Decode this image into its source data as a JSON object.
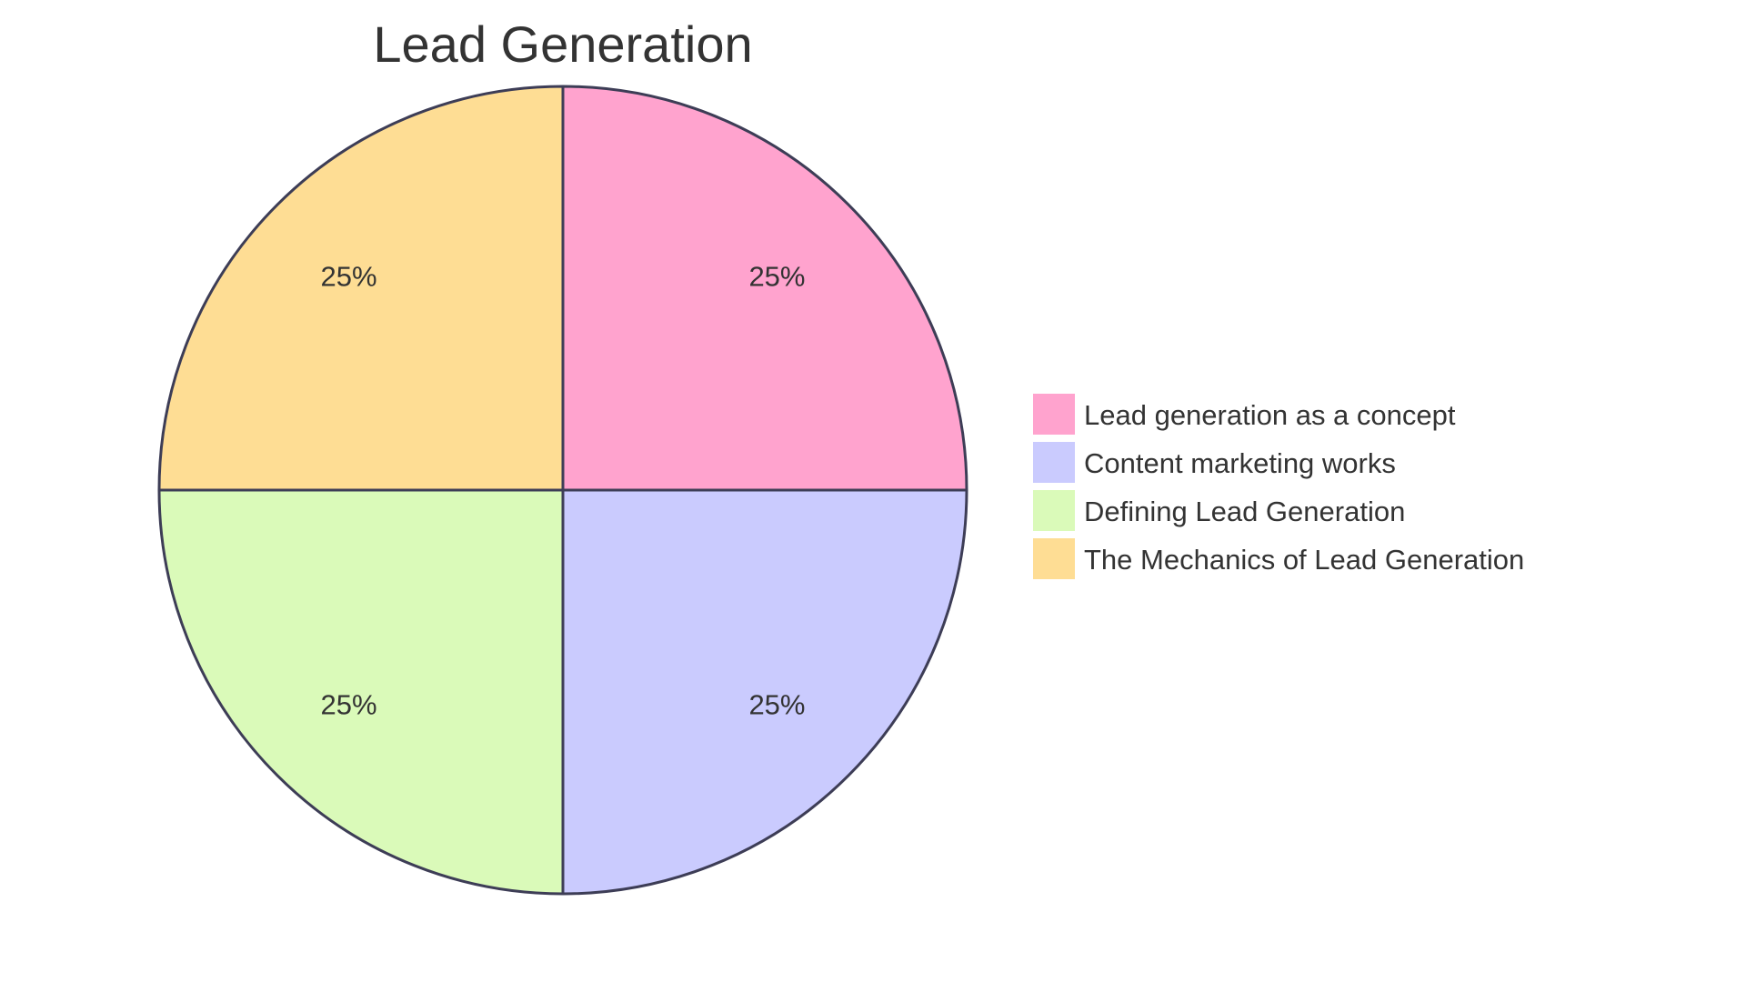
{
  "chart_data": {
    "type": "pie",
    "title": "Lead Generation",
    "categories": [
      "Lead generation as a concept",
      "Content marketing works",
      "Defining Lead Generation",
      "The Mechanics of Lead Generation"
    ],
    "values": [
      25,
      25,
      25,
      25
    ],
    "unit": "%",
    "labels": [
      "25%",
      "25%",
      "25%",
      "25%"
    ],
    "colors": [
      "#FFA3CE",
      "#CACBFE",
      "#DAFAB9",
      "#FEDD94"
    ],
    "legend_position": "right",
    "start_angle": "12 o'clock",
    "direction": "clockwise"
  },
  "title": "Lead Generation",
  "stroke_color": "#3D3D56",
  "legend": {
    "items": [
      {
        "label": "Lead generation as a concept",
        "color": "#FFA3CE"
      },
      {
        "label": "Content marketing works",
        "color": "#CACBFE"
      },
      {
        "label": "Defining Lead Generation",
        "color": "#DAFAB9"
      },
      {
        "label": "The Mechanics of Lead Generation",
        "color": "#FEDD94"
      }
    ]
  }
}
